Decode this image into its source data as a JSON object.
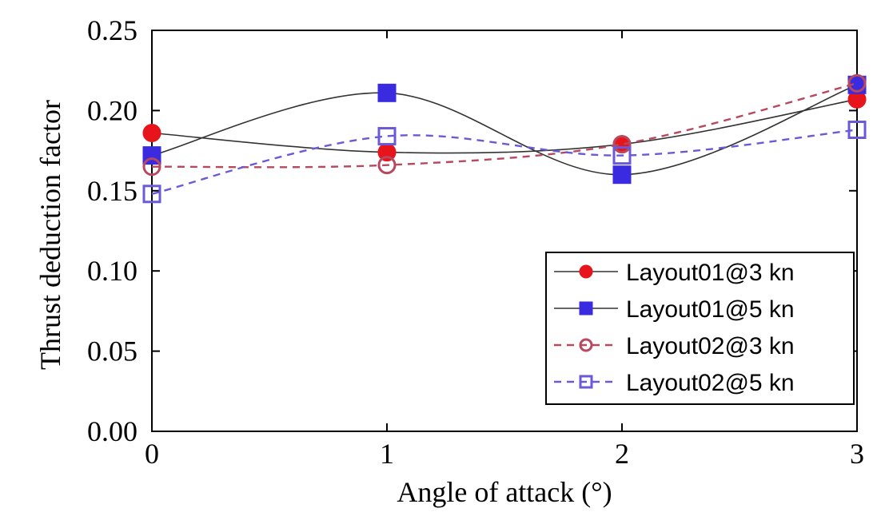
{
  "chart_data": {
    "type": "line",
    "xlabel": "Angle of attack (°)",
    "ylabel": "Thrust deduction factor",
    "x": [
      0,
      1,
      2,
      3
    ],
    "x_ticks": [
      "0",
      "1",
      "2",
      "3"
    ],
    "y_ticks": [
      "0.00",
      "0.05",
      "0.10",
      "0.15",
      "0.20",
      "0.25"
    ],
    "xlim": [
      0,
      3
    ],
    "ylim": [
      0,
      0.25
    ],
    "grid": false,
    "legend_position": "bottom-right",
    "series": [
      {
        "name": "Layout01@3 kn",
        "values": [
          0.186,
          0.174,
          0.179,
          0.207
        ],
        "color": "#e8141c",
        "marker": "filled-circle",
        "line": "solid"
      },
      {
        "name": "Layout01@5 kn",
        "values": [
          0.172,
          0.211,
          0.16,
          0.216
        ],
        "color": "#3a2be0",
        "marker": "filled-square",
        "line": "solid"
      },
      {
        "name": "Layout02@3 kn",
        "values": [
          0.165,
          0.166,
          0.179,
          0.217
        ],
        "color": "#b8485e",
        "marker": "open-circle",
        "line": "dashed"
      },
      {
        "name": "Layout02@5 kn",
        "values": [
          0.148,
          0.184,
          0.172,
          0.188
        ],
        "color": "#6a5ad8",
        "marker": "open-square",
        "line": "dashed"
      }
    ]
  }
}
